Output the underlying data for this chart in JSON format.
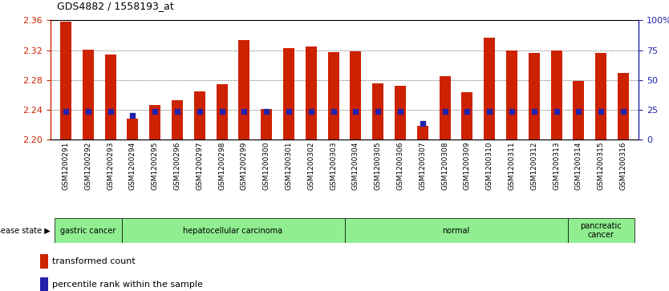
{
  "title": "GDS4882 / 1558193_at",
  "samples": [
    "GSM1200291",
    "GSM1200292",
    "GSM1200293",
    "GSM1200294",
    "GSM1200295",
    "GSM1200296",
    "GSM1200297",
    "GSM1200298",
    "GSM1200299",
    "GSM1200300",
    "GSM1200301",
    "GSM1200302",
    "GSM1200303",
    "GSM1200304",
    "GSM1200305",
    "GSM1200306",
    "GSM1200307",
    "GSM1200308",
    "GSM1200309",
    "GSM1200310",
    "GSM1200311",
    "GSM1200312",
    "GSM1200313",
    "GSM1200314",
    "GSM1200315",
    "GSM1200316"
  ],
  "bar_values": [
    2.358,
    2.321,
    2.314,
    2.228,
    2.247,
    2.253,
    2.265,
    2.274,
    2.334,
    2.241,
    2.323,
    2.325,
    2.317,
    2.319,
    2.276,
    2.272,
    2.218,
    2.285,
    2.264,
    2.337,
    2.32,
    2.316,
    2.32,
    2.279,
    2.316,
    2.29
  ],
  "percentile_values": [
    2.238,
    2.238,
    2.238,
    2.233,
    2.238,
    2.238,
    2.238,
    2.238,
    2.238,
    2.238,
    2.238,
    2.238,
    2.238,
    2.238,
    2.238,
    2.238,
    2.222,
    2.238,
    2.238,
    2.238,
    2.238,
    2.238,
    2.238,
    2.238,
    2.238,
    2.238
  ],
  "disease_groups": [
    {
      "label": "gastric cancer",
      "start": 0,
      "end": 3
    },
    {
      "label": "hepatocellular carcinoma",
      "start": 3,
      "end": 13
    },
    {
      "label": "normal",
      "start": 13,
      "end": 23
    },
    {
      "label": "pancreatic\ncancer",
      "start": 23,
      "end": 26
    }
  ],
  "ylim": [
    2.2,
    2.36
  ],
  "yticks": [
    2.2,
    2.24,
    2.28,
    2.32,
    2.36
  ],
  "right_ylim": [
    0,
    100
  ],
  "right_yticks": [
    0,
    25,
    50,
    75,
    100
  ],
  "bar_color": "#CC2200",
  "dot_color": "#2222AA",
  "bg_color": "#FFFFFF",
  "axis_color_left": "#CC2200",
  "axis_color_right": "#2222AA",
  "disease_bg": "#90EE90",
  "xtick_bg": "#D8D8D8"
}
